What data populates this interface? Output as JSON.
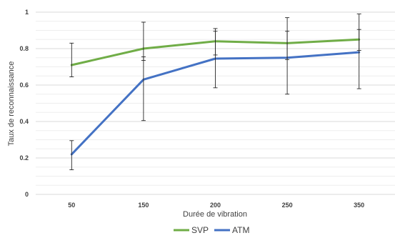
{
  "chart_data": {
    "type": "line",
    "xlabel": "Durée de vibration",
    "ylabel": "Taux de reconnaissance",
    "categories": [
      "50",
      "150",
      "200",
      "250",
      "350"
    ],
    "ylim": [
      0,
      1
    ],
    "yticks": [
      "0",
      "0.2",
      "0.4",
      "0.6",
      "0.8",
      "1"
    ],
    "grid": true,
    "legend_position": "bottom",
    "series": [
      {
        "name": "SVP",
        "color": "#70AD47",
        "values": [
          0.71,
          0.8,
          0.84,
          0.83,
          0.85
        ],
        "error_low": [
          0.645,
          0.735,
          0.765,
          0.74,
          0.79
        ],
        "error_high": [
          0.83,
          0.945,
          0.91,
          0.895,
          0.905
        ]
      },
      {
        "name": "ATM",
        "color": "#4472C4",
        "values": [
          0.22,
          0.63,
          0.745,
          0.75,
          0.78
        ],
        "error_low": [
          0.135,
          0.405,
          0.585,
          0.55,
          0.58
        ],
        "error_high": [
          0.295,
          0.755,
          0.895,
          0.97,
          0.99
        ]
      }
    ]
  }
}
